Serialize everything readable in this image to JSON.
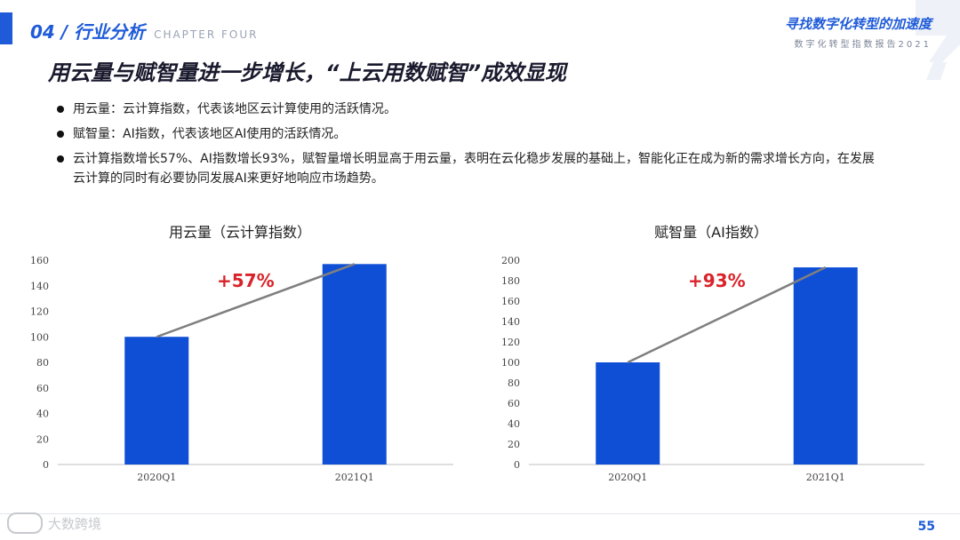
{
  "header": {
    "chapter_number": "04 / 行业分析",
    "chapter_label": "CHAPTER FOUR",
    "report_title": "寻找数字化转型的加速度",
    "report_subtitle": "数字化转型指数报告2021"
  },
  "page_title": {
    "prefix": "用云量与赋智量进一步增长，",
    "highlight": "“上云用数赋智”成效显现"
  },
  "bullets": [
    "用云量：云计算指数，代表该地区云计算使用的活跃情况。",
    "赋智量：AI指数，代表该地区AI使用的活跃情况。",
    "云计算指数增长57%、AI指数增长93%，赋智量增长明显高于用云量，表明在云化稳步发展的基础上，智能化正在成为新的需求增长方向，在发展云计算的同时有必要协同发展AI来更好地响应市场趋势。"
  ],
  "chart_data": [
    {
      "type": "bar",
      "title": "用云量（云计算指数）",
      "categories": [
        "2020Q1",
        "2021Q1"
      ],
      "values": [
        100,
        157
      ],
      "ylim": [
        0,
        160
      ],
      "yticks": [
        0,
        20,
        40,
        60,
        80,
        100,
        120,
        140,
        160
      ],
      "annotation": "+57%",
      "bar_color": "#0f4fd6",
      "annotation_color": "#d9232a",
      "trend_line": true,
      "grid": false
    },
    {
      "type": "bar",
      "title": "赋智量（AI指数）",
      "categories": [
        "2020Q1",
        "2021Q1"
      ],
      "values": [
        100,
        193
      ],
      "ylim": [
        0,
        200
      ],
      "yticks": [
        0,
        20,
        40,
        60,
        80,
        100,
        120,
        140,
        160,
        180,
        200
      ],
      "annotation": "+93%",
      "bar_color": "#0f4fd6",
      "annotation_color": "#d9232a",
      "trend_line": true,
      "grid": false
    }
  ],
  "footer": {
    "watermark": "大数跨境",
    "page_number": "55"
  },
  "colors": {
    "accent": "#1f5bd8",
    "bar": "#0f4fd6",
    "annotation": "#d9232a"
  }
}
